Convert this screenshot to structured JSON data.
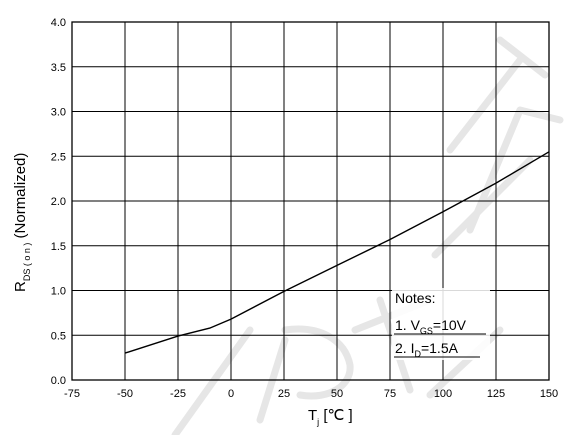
{
  "chart_data": {
    "type": "line",
    "xlabel": {
      "main": "T",
      "sub": "j",
      "unit": " [℃ ]"
    },
    "ylabel": {
      "main": "R",
      "sub": "DS ( o n )",
      "rest": " (Normalized)"
    },
    "xlim": [
      -75,
      150
    ],
    "ylim": [
      0,
      4.0
    ],
    "x_ticks": [
      "-75",
      "-50",
      "-25",
      "0",
      "25",
      "50",
      "75",
      "100",
      "125",
      "150"
    ],
    "y_ticks": [
      "0.0",
      "0.5",
      "1.0",
      "1.5",
      "2.0",
      "2.5",
      "3.0",
      "3.5",
      "4.0"
    ],
    "grid": true,
    "series": [
      {
        "x": [
          -50,
          -25,
          -10,
          0,
          25,
          50,
          75,
          100,
          125,
          150
        ],
        "y": [
          0.3,
          0.49,
          0.58,
          0.68,
          0.99,
          1.28,
          1.57,
          1.88,
          2.2,
          2.55
        ]
      }
    ],
    "notes": {
      "title": "Notes:",
      "line1": {
        "prefix": "1. V",
        "sub": "GS",
        "suffix": "=10V"
      },
      "line2": {
        "prefix": "2. I",
        "sub": "D",
        "suffix": "=1.5A"
      }
    }
  }
}
